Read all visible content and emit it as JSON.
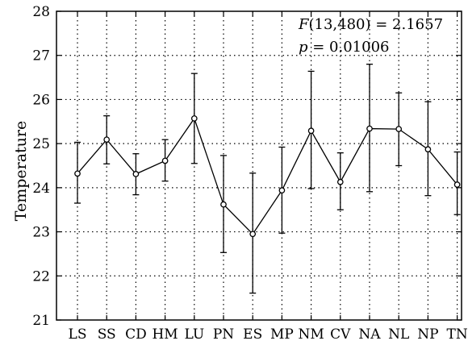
{
  "chart_data": {
    "type": "line",
    "title": "",
    "xlabel": "",
    "ylabel": "Temperature",
    "ylim": [
      21,
      28
    ],
    "yticks": [
      21,
      22,
      23,
      24,
      25,
      26,
      27,
      28
    ],
    "grid": "dotted",
    "categories": [
      "LS",
      "SS",
      "CD",
      "HM",
      "LU",
      "PN",
      "ES",
      "MP",
      "NM",
      "CV",
      "NA",
      "NL",
      "NP",
      "TN"
    ],
    "series": [
      {
        "values": [
          24.32,
          25.09,
          24.31,
          24.61,
          25.57,
          23.62,
          22.95,
          23.94,
          25.29,
          24.13,
          25.34,
          25.33,
          24.87,
          24.07
        ],
        "error_low": [
          23.65,
          24.54,
          23.84,
          24.15,
          24.55,
          22.53,
          21.61,
          22.97,
          23.98,
          23.5,
          23.91,
          24.5,
          23.82,
          23.39
        ],
        "error_high": [
          25.03,
          25.63,
          24.77,
          25.09,
          26.59,
          24.73,
          24.33,
          24.92,
          26.64,
          24.79,
          26.8,
          26.15,
          25.95,
          24.81
        ]
      }
    ],
    "annotation": {
      "f_stat": "F(13,480) = 2.1657",
      "f_prefix": "F",
      "f_rest": "(13,480) = 2.1657",
      "p_value": "p = 0.01006",
      "p_prefix": "p",
      "p_rest": " = 0.01006",
      "position": "top-right"
    },
    "colors": {
      "line": "#000000",
      "marker_fill": "#ffffff",
      "grid": "#000000"
    }
  }
}
